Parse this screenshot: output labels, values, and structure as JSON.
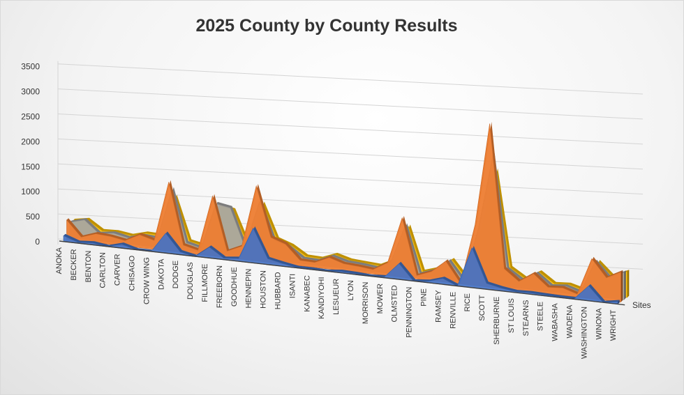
{
  "chart_data": {
    "type": "area",
    "title": "2025 County by County Results",
    "view": "3d",
    "y_ticks": [
      "0",
      "500",
      "1000",
      "1500",
      "2000",
      "2500",
      "3000",
      "3500"
    ],
    "ylim": [
      0,
      3500
    ],
    "grid": true,
    "depth_axis_label": "Sites",
    "colors": [
      "#4472C4",
      "#ED7D31",
      "#A5A5A5",
      "#FFC000"
    ],
    "categories": [
      "ANOKA",
      "BECKER",
      "BENTON",
      "CARLTON",
      "CARVER",
      "CHISAGO",
      "CROW WING",
      "DAKOTA",
      "DODGE",
      "DOUGLAS",
      "FILLMORE",
      "FREEBORN",
      "GOODHUE",
      "HENNEPIN",
      "HOUSTON",
      "HUBBARD",
      "ISANTI",
      "KANABEC",
      "KANDIYOHI",
      "LESUEUR",
      "LYON",
      "MORRISON",
      "MOWER",
      "OLMSTED",
      "PENNINGTON",
      "PINE",
      "RAMSEY",
      "RENVILLE",
      "RICE",
      "SCOTT",
      "SHERBURNE",
      "ST LOUIS",
      "STEARNS",
      "STEELE",
      "WABASHA",
      "WADENA",
      "WASHINGTON",
      "WINONA",
      "WRIGHT"
    ],
    "series": [
      {
        "values": [
          120,
          20,
          40,
          0,
          80,
          0,
          0,
          400,
          60,
          0,
          220,
          30,
          60,
          700,
          120,
          60,
          10,
          10,
          0,
          30,
          20,
          0,
          20,
          320,
          0,
          30,
          120,
          0,
          800,
          120,
          60,
          20,
          30,
          20,
          10,
          10,
          300,
          0,
          50
        ]
      },
      {
        "values": [
          390,
          80,
          180,
          160,
          110,
          260,
          180,
          1380,
          150,
          80,
          1200,
          130,
          260,
          1500,
          500,
          400,
          110,
          100,
          230,
          140,
          120,
          90,
          260,
          1190,
          70,
          180,
          420,
          10,
          1220,
          3270,
          400,
          180,
          370,
          130,
          150,
          60,
          800,
          450,
          600
        ]
      },
      {
        "values": [
          300,
          380,
          140,
          180,
          120,
          200,
          180,
          1200,
          150,
          80,
          1000,
          950,
          200,
          1150,
          400,
          300,
          100,
          90,
          210,
          130,
          110,
          80,
          230,
          1000,
          60,
          160,
          380,
          10,
          1100,
          2600,
          350,
          160,
          330,
          110,
          140,
          50,
          700,
          400,
          550
        ]
      },
      {
        "values": [
          290,
          340,
          150,
          160,
          120,
          200,
          190,
          1000,
          140,
          80,
          920,
          860,
          190,
          1060,
          380,
          280,
          100,
          90,
          200,
          120,
          100,
          80,
          220,
          930,
          60,
          150,
          360,
          10,
          1050,
          2250,
          330,
          150,
          310,
          110,
          130,
          50,
          650,
          380,
          520
        ]
      }
    ]
  }
}
